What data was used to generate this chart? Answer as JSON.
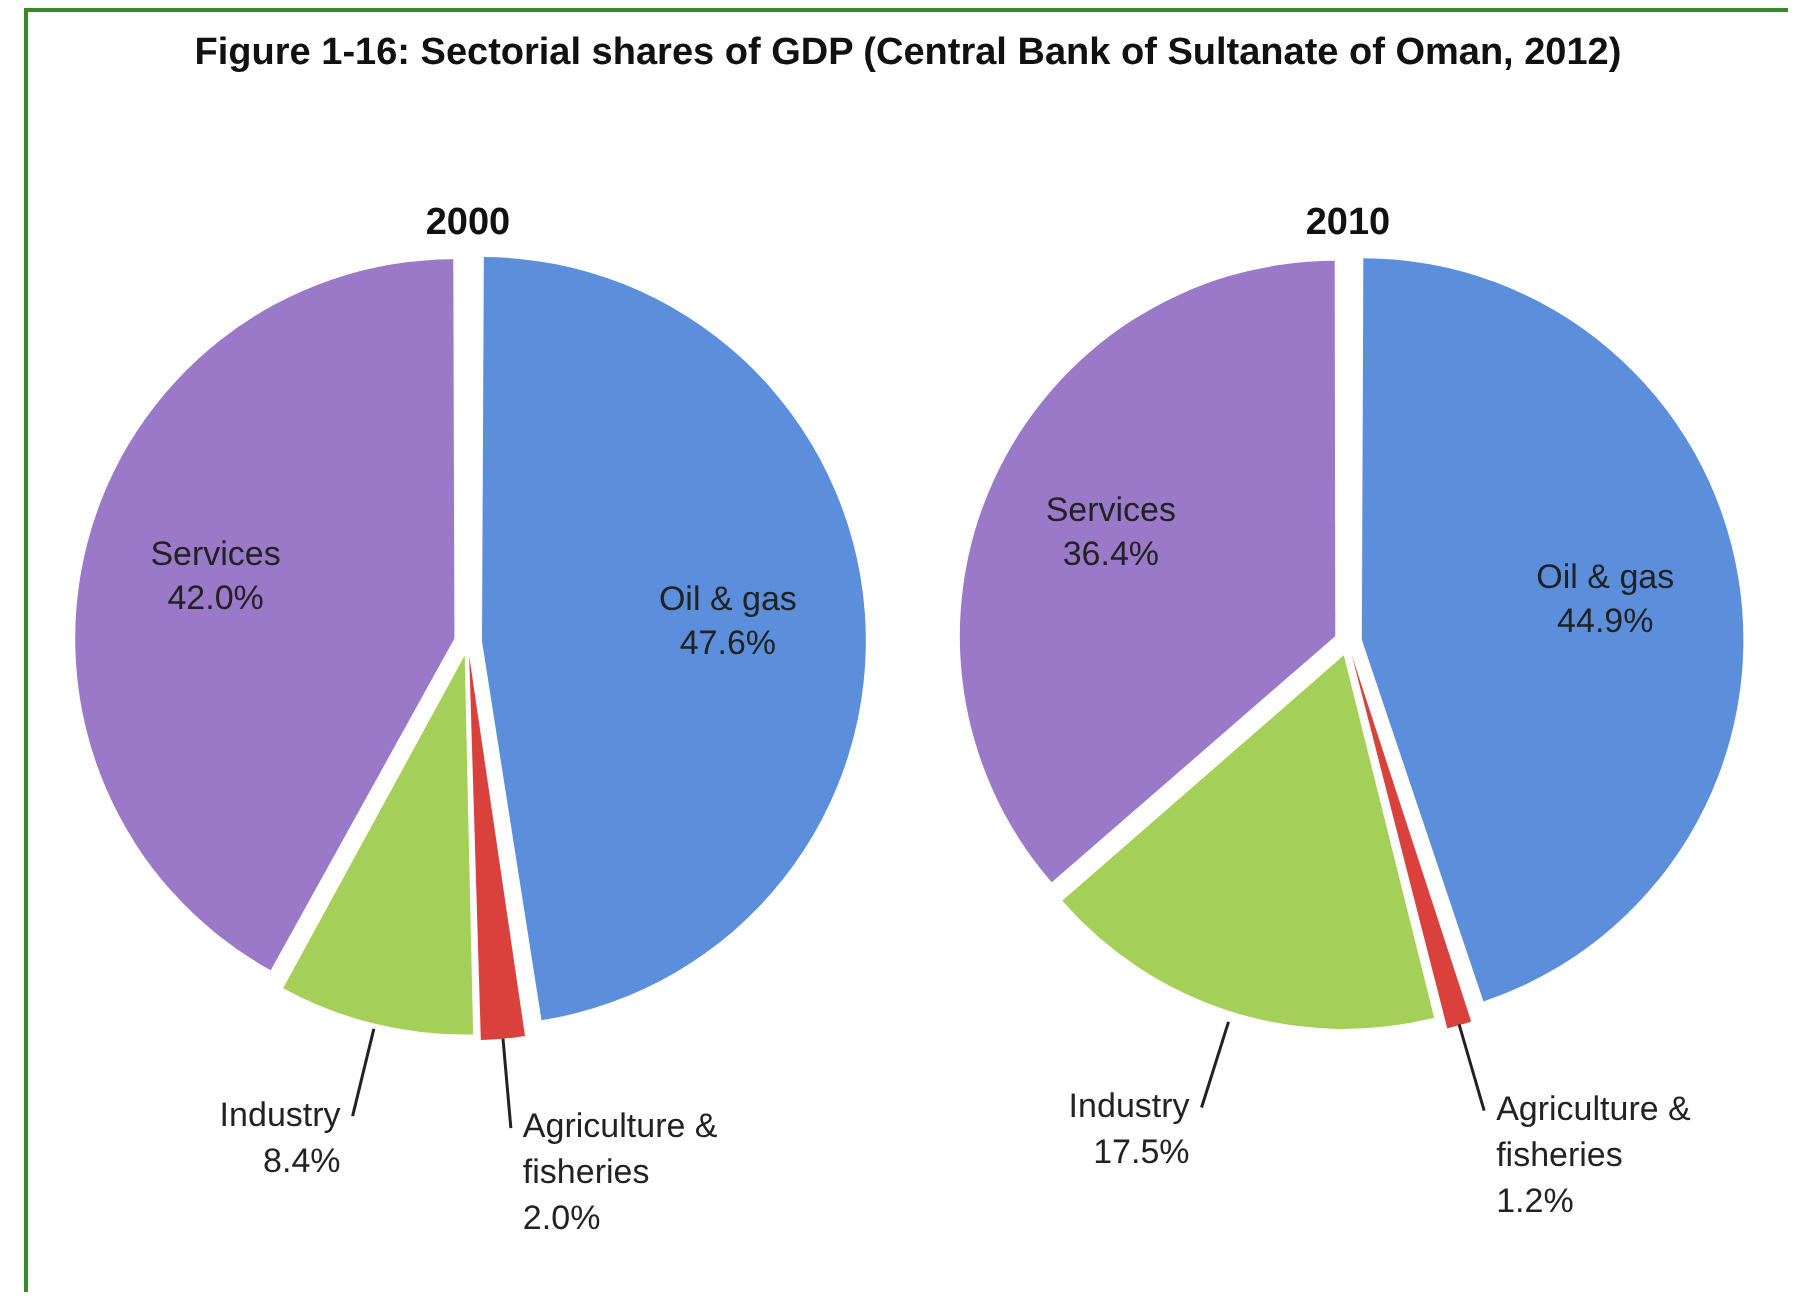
{
  "chart_data": [
    {
      "type": "pie",
      "title": "Figure 1-16: Sectorial shares of GDP (Central Bank of Sultanate of Oman, 2012)",
      "subtitle": "2000",
      "categories": [
        "Oil & gas",
        "Agriculture & fisheries",
        "Industry",
        "Services"
      ],
      "values": [
        47.6,
        2.0,
        8.4,
        42.0
      ],
      "value_labels": [
        "47.6%",
        "2.0%",
        "8.4%",
        "42.0%"
      ],
      "colors": [
        "#5b8fdc",
        "#d9413c",
        "#a4d05a",
        "#9a79c9"
      ],
      "legend": false
    },
    {
      "type": "pie",
      "title": "2010",
      "categories": [
        "Oil & gas",
        "Agriculture & fisheries",
        "Industry",
        "Services"
      ],
      "values": [
        44.9,
        1.2,
        17.5,
        36.4
      ],
      "value_labels": [
        "44.9%",
        "1.2%",
        "17.5%",
        "36.4%"
      ],
      "colors": [
        "#5b8fdc",
        "#d9413c",
        "#a4d05a",
        "#9a79c9"
      ],
      "legend": false
    }
  ]
}
